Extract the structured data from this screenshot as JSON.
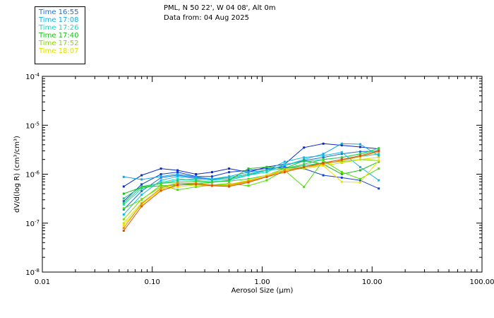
{
  "header": {
    "location": "PML, N 50 22', W 04 08', Alt 0m",
    "date": "Data from: 04 Aug 2025"
  },
  "legend": [
    {
      "label": "Time 16:55",
      "color": "#1f6fd4"
    },
    {
      "label": "Time 17:08",
      "color": "#12b0e0"
    },
    {
      "label": "Time 17:26",
      "color": "#18d9bf"
    },
    {
      "label": "Time 17:40",
      "color": "#18c018"
    },
    {
      "label": "Time 17:52",
      "color": "#8ad600"
    },
    {
      "label": "Time 18:07",
      "color": "#e0e000"
    }
  ],
  "chart_data": {
    "type": "line",
    "xscale": "log",
    "yscale": "log",
    "xlim": [
      0.01,
      100
    ],
    "ylim": [
      1e-08,
      0.0001
    ],
    "xlabel": "Aerosol Size (µm)",
    "ylabel": "dV/d(log R) (cm³/cm³)",
    "x_tick_labels": [
      "0.01",
      "0.10",
      "1.00",
      "10.00",
      "100.00"
    ],
    "y_tick_values": [
      1e-08,
      1e-07,
      1e-06,
      1e-05,
      0.0001
    ],
    "y_tick_exponents": [
      "-8",
      "-7",
      "-6",
      "-5",
      "-4"
    ],
    "y_tick_base": "10",
    "x": [
      0.055,
      0.08,
      0.12,
      0.17,
      0.25,
      0.35,
      0.5,
      0.75,
      1.1,
      1.6,
      2.4,
      3.6,
      5.3,
      7.8,
      11.5
    ],
    "series": [
      {
        "name": "dark-blue",
        "color": "#0a28c8",
        "values": [
          5.6e-07,
          9.5e-07,
          1.3e-06,
          1.2e-06,
          1e-06,
          1.1e-06,
          1.3e-06,
          1.1e-06,
          1.4e-06,
          1.6e-06,
          3.5e-06,
          4.2e-06,
          3.9e-06,
          3.6e-06,
          3.3e-06
        ]
      },
      {
        "name": "blue-dropping",
        "color": "#1040d8",
        "values": [
          2.8e-07,
          6.2e-07,
          1e-06,
          1.1e-06,
          9e-07,
          9e-07,
          1.1e-06,
          1.2e-06,
          1.3e-06,
          1.4e-06,
          1.3e-06,
          9.5e-07,
          8.5e-07,
          7.5e-07,
          5.1e-07
        ]
      },
      {
        "name": "mid-blue",
        "color": "#1f6fd4",
        "values": [
          1.9e-07,
          4.5e-07,
          8.5e-07,
          9.5e-07,
          8.5e-07,
          8e-07,
          8.5e-07,
          1e-06,
          1.2e-06,
          1.5e-06,
          1.9e-06,
          2.2e-06,
          2.6e-06,
          2.9e-06,
          3e-06
        ]
      },
      {
        "name": "cyan-high",
        "color": "#10a8e8",
        "values": [
          8.8e-07,
          7.8e-07,
          9e-07,
          1e-06,
          8.8e-07,
          8e-07,
          9e-07,
          1.1e-06,
          1.2e-06,
          1.5e-06,
          2e-06,
          2.6e-06,
          4.2e-06,
          4.1e-06,
          2.4e-06
        ]
      },
      {
        "name": "cyan-2",
        "color": "#12b8e8",
        "values": [
          1.5e-07,
          3.8e-07,
          7.5e-07,
          9e-07,
          8.2e-07,
          7.6e-07,
          8e-07,
          9.5e-07,
          1.2e-06,
          1.8e-06,
          2.2e-06,
          2.4e-06,
          2.8e-06,
          1.4e-06,
          7.5e-07
        ]
      },
      {
        "name": "turquoise",
        "color": "#18d9bf",
        "values": [
          2.4e-07,
          5e-07,
          6.8e-07,
          8e-07,
          7.5e-07,
          7e-07,
          7.5e-07,
          9.5e-07,
          1.1e-06,
          1.6e-06,
          1.8e-06,
          2e-06,
          2.2e-06,
          2.6e-06,
          3.1e-06
        ]
      },
      {
        "name": "teal-green",
        "color": "#18c898",
        "values": [
          3.2e-07,
          5.6e-07,
          6.5e-07,
          7.5e-07,
          8e-07,
          7.8e-07,
          8.5e-07,
          1e-06,
          1.2e-06,
          1.3e-06,
          1.5e-06,
          1.7e-06,
          2e-06,
          2.3e-06,
          2.6e-06
        ]
      },
      {
        "name": "green-1",
        "color": "#18c018",
        "values": [
          4e-07,
          5.4e-07,
          5.8e-07,
          6e-07,
          6.5e-07,
          6.8e-07,
          7.5e-07,
          1.3e-06,
          1.4e-06,
          1.3e-06,
          1.9e-06,
          1.6e-06,
          1e-06,
          1.2e-06,
          1.8e-06
        ]
      },
      {
        "name": "green-2",
        "color": "#30d040",
        "values": [
          2.6e-07,
          5.5e-07,
          6.5e-07,
          6.9e-07,
          7.2e-07,
          7e-07,
          7.2e-07,
          8e-07,
          9.5e-07,
          1.3e-06,
          1.6e-06,
          2e-06,
          2.2e-06,
          2.6e-06,
          3.4e-06
        ]
      },
      {
        "name": "lime-1",
        "color": "#50e000",
        "values": [
          2e-07,
          3e-07,
          6e-07,
          4.8e-07,
          5.5e-07,
          6e-07,
          6.5e-07,
          5.8e-07,
          7.5e-07,
          1.2e-06,
          5.5e-07,
          1.9e-06,
          1.1e-06,
          8e-07,
          1.3e-06
        ]
      },
      {
        "name": "yellow-green",
        "color": "#8ad600",
        "values": [
          1.2e-07,
          3.1e-07,
          5.5e-07,
          6.5e-07,
          6.5e-07,
          6e-07,
          6e-07,
          7.5e-07,
          9.5e-07,
          1.3e-06,
          1.4e-06,
          1.7e-06,
          1.8e-06,
          2e-06,
          1.9e-06
        ]
      },
      {
        "name": "yellow-1",
        "color": "#d0e000",
        "values": [
          1e-07,
          2.6e-07,
          5e-07,
          6e-07,
          6.2e-07,
          5.8e-07,
          5.8e-07,
          7e-07,
          9e-07,
          1.2e-06,
          1.3e-06,
          1.5e-06,
          1.7e-06,
          2e-06,
          2.2e-06
        ]
      },
      {
        "name": "yellow-2",
        "color": "#f0e000",
        "values": [
          9e-08,
          2.4e-07,
          4.8e-07,
          5.5e-07,
          6e-07,
          5.8e-07,
          6.2e-07,
          7.5e-07,
          9.5e-07,
          1.2e-06,
          1.4e-06,
          1.5e-06,
          7e-07,
          6.8e-07,
          1.9e-06
        ]
      },
      {
        "name": "orange",
        "color": "#e89000",
        "values": [
          8e-08,
          2.5e-07,
          5.2e-07,
          6.5e-07,
          6.6e-07,
          6e-07,
          6e-07,
          7.2e-07,
          9e-07,
          1.2e-06,
          1.4e-06,
          1.6e-06,
          1.9e-06,
          2.3e-06,
          2.9e-06
        ]
      },
      {
        "name": "red-orange",
        "color": "#e05000",
        "values": [
          7e-08,
          2.2e-07,
          4.6e-07,
          6e-07,
          6.2e-07,
          5.8e-07,
          5.6e-07,
          6.8e-07,
          8.8e-07,
          1.1e-06,
          1.4e-06,
          1.7e-06,
          2e-06,
          2.4e-06,
          3e-06
        ]
      }
    ]
  }
}
